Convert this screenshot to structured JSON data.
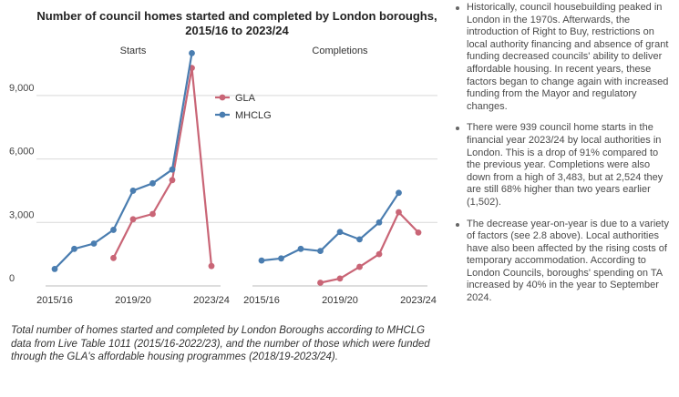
{
  "chart_data": {
    "type": "line",
    "title": "Number of council homes started and completed by London boroughs, 2015/16 to 2023/24",
    "ylim": [
      0,
      10500
    ],
    "yticks": [
      {
        "value": 0,
        "label": "0"
      },
      {
        "value": 3000,
        "label": "3,000"
      },
      {
        "value": 6000,
        "label": "6,000"
      },
      {
        "value": 9000,
        "label": "9,000"
      }
    ],
    "xlim": [
      2015,
      2023
    ],
    "xticks": [
      {
        "value": 2015,
        "label": "2015/16"
      },
      {
        "value": 2019,
        "label": "2019/20"
      },
      {
        "value": 2023,
        "label": "2023/24"
      }
    ],
    "grid": true,
    "legend_position": "top-right of first panel",
    "legend": [
      {
        "name": "GLA",
        "color": "#c96576"
      },
      {
        "name": "MHCLG",
        "color": "#4a7db0"
      }
    ],
    "panels": [
      {
        "title": "Starts",
        "series": [
          {
            "name": "GLA",
            "color": "#c96576",
            "x": [
              2018,
              2019,
              2020,
              2021,
              2022,
              2023
            ],
            "y": [
              1320,
              3150,
              3400,
              5000,
              10300,
              939
            ]
          },
          {
            "name": "MHCLG",
            "color": "#4a7db0",
            "x": [
              2015,
              2016,
              2017,
              2018,
              2019,
              2020,
              2021,
              2022
            ],
            "y": [
              800,
              1750,
              2000,
              2650,
              4500,
              4850,
              5500,
              11000
            ]
          }
        ]
      },
      {
        "title": "Completions",
        "series": [
          {
            "name": "GLA",
            "color": "#c96576",
            "x": [
              2018,
              2019,
              2020,
              2021,
              2022,
              2023
            ],
            "y": [
              150,
              350,
              900,
              1502,
              3483,
              2524
            ]
          },
          {
            "name": "MHCLG",
            "color": "#4a7db0",
            "x": [
              2015,
              2016,
              2017,
              2018,
              2019,
              2020,
              2021,
              2022
            ],
            "y": [
              1200,
              1300,
              1750,
              1650,
              2550,
              2200,
              3000,
              4400
            ]
          }
        ]
      }
    ]
  },
  "caption": "Total number of homes started and completed by London Boroughs according to MHCLG data from Live Table 1011 (2015/16-2022/23), and the number of those which were funded through the GLA's affordable housing programmes (2018/19-2023/24).",
  "bullets": [
    "Historically, council housebuilding peaked in London in the 1970s. Afterwards, the introduction of Right to Buy, restrictions on local authority financing and absence of grant funding decreased councils' ability to deliver affordable housing. In recent years, these factors began to change again with increased funding from the Mayor and regulatory changes.",
    "There were 939 council home starts in the financial year 2023/24 by local authorities in London. This is a drop of 91% compared to the previous year. Completions were also down from a high of 3,483, but at 2,524 they are still 68% higher than two years earlier (1,502).",
    "The decrease year-on-year is due to a variety of factors (see 2.8 above). Local authorities have also been affected by the rising costs of temporary accommodation. According to London Councils, boroughs' spending on TA increased by 40% in the year to September 2024."
  ]
}
